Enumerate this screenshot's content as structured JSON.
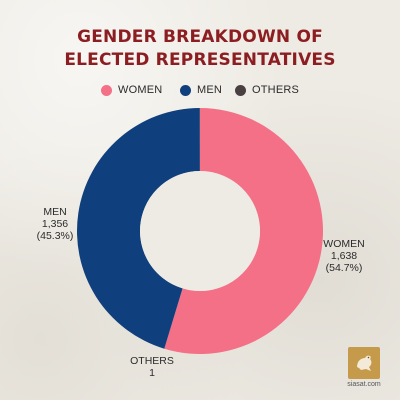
{
  "chart_data": {
    "type": "pie",
    "variant": "donut",
    "title_lines": [
      "GENDER BREAKDOWN OF",
      "ELECTED REPRESENTATIVES"
    ],
    "legend": [
      {
        "label": "WOMEN",
        "color": "#f47086"
      },
      {
        "label": "MEN",
        "color": "#0f3f7c"
      },
      {
        "label": "OTHERS",
        "color": "#4a4042"
      }
    ],
    "slices": [
      {
        "name": "WOMEN",
        "value": 1638,
        "percent_label": "(54.7%)",
        "value_label": "1,638",
        "color": "#f47086"
      },
      {
        "name": "MEN",
        "value": 1356,
        "percent_label": "(45.3%)",
        "value_label": "1,356",
        "color": "#0f3f7c"
      },
      {
        "name": "OTHERS",
        "value": 1,
        "percent_label": "",
        "value_label": "1",
        "color": "#4a4042"
      }
    ],
    "legend_placement": "top-center"
  },
  "brand": {
    "name": "siasat.com",
    "logo_icon": "pigeon-icon"
  }
}
